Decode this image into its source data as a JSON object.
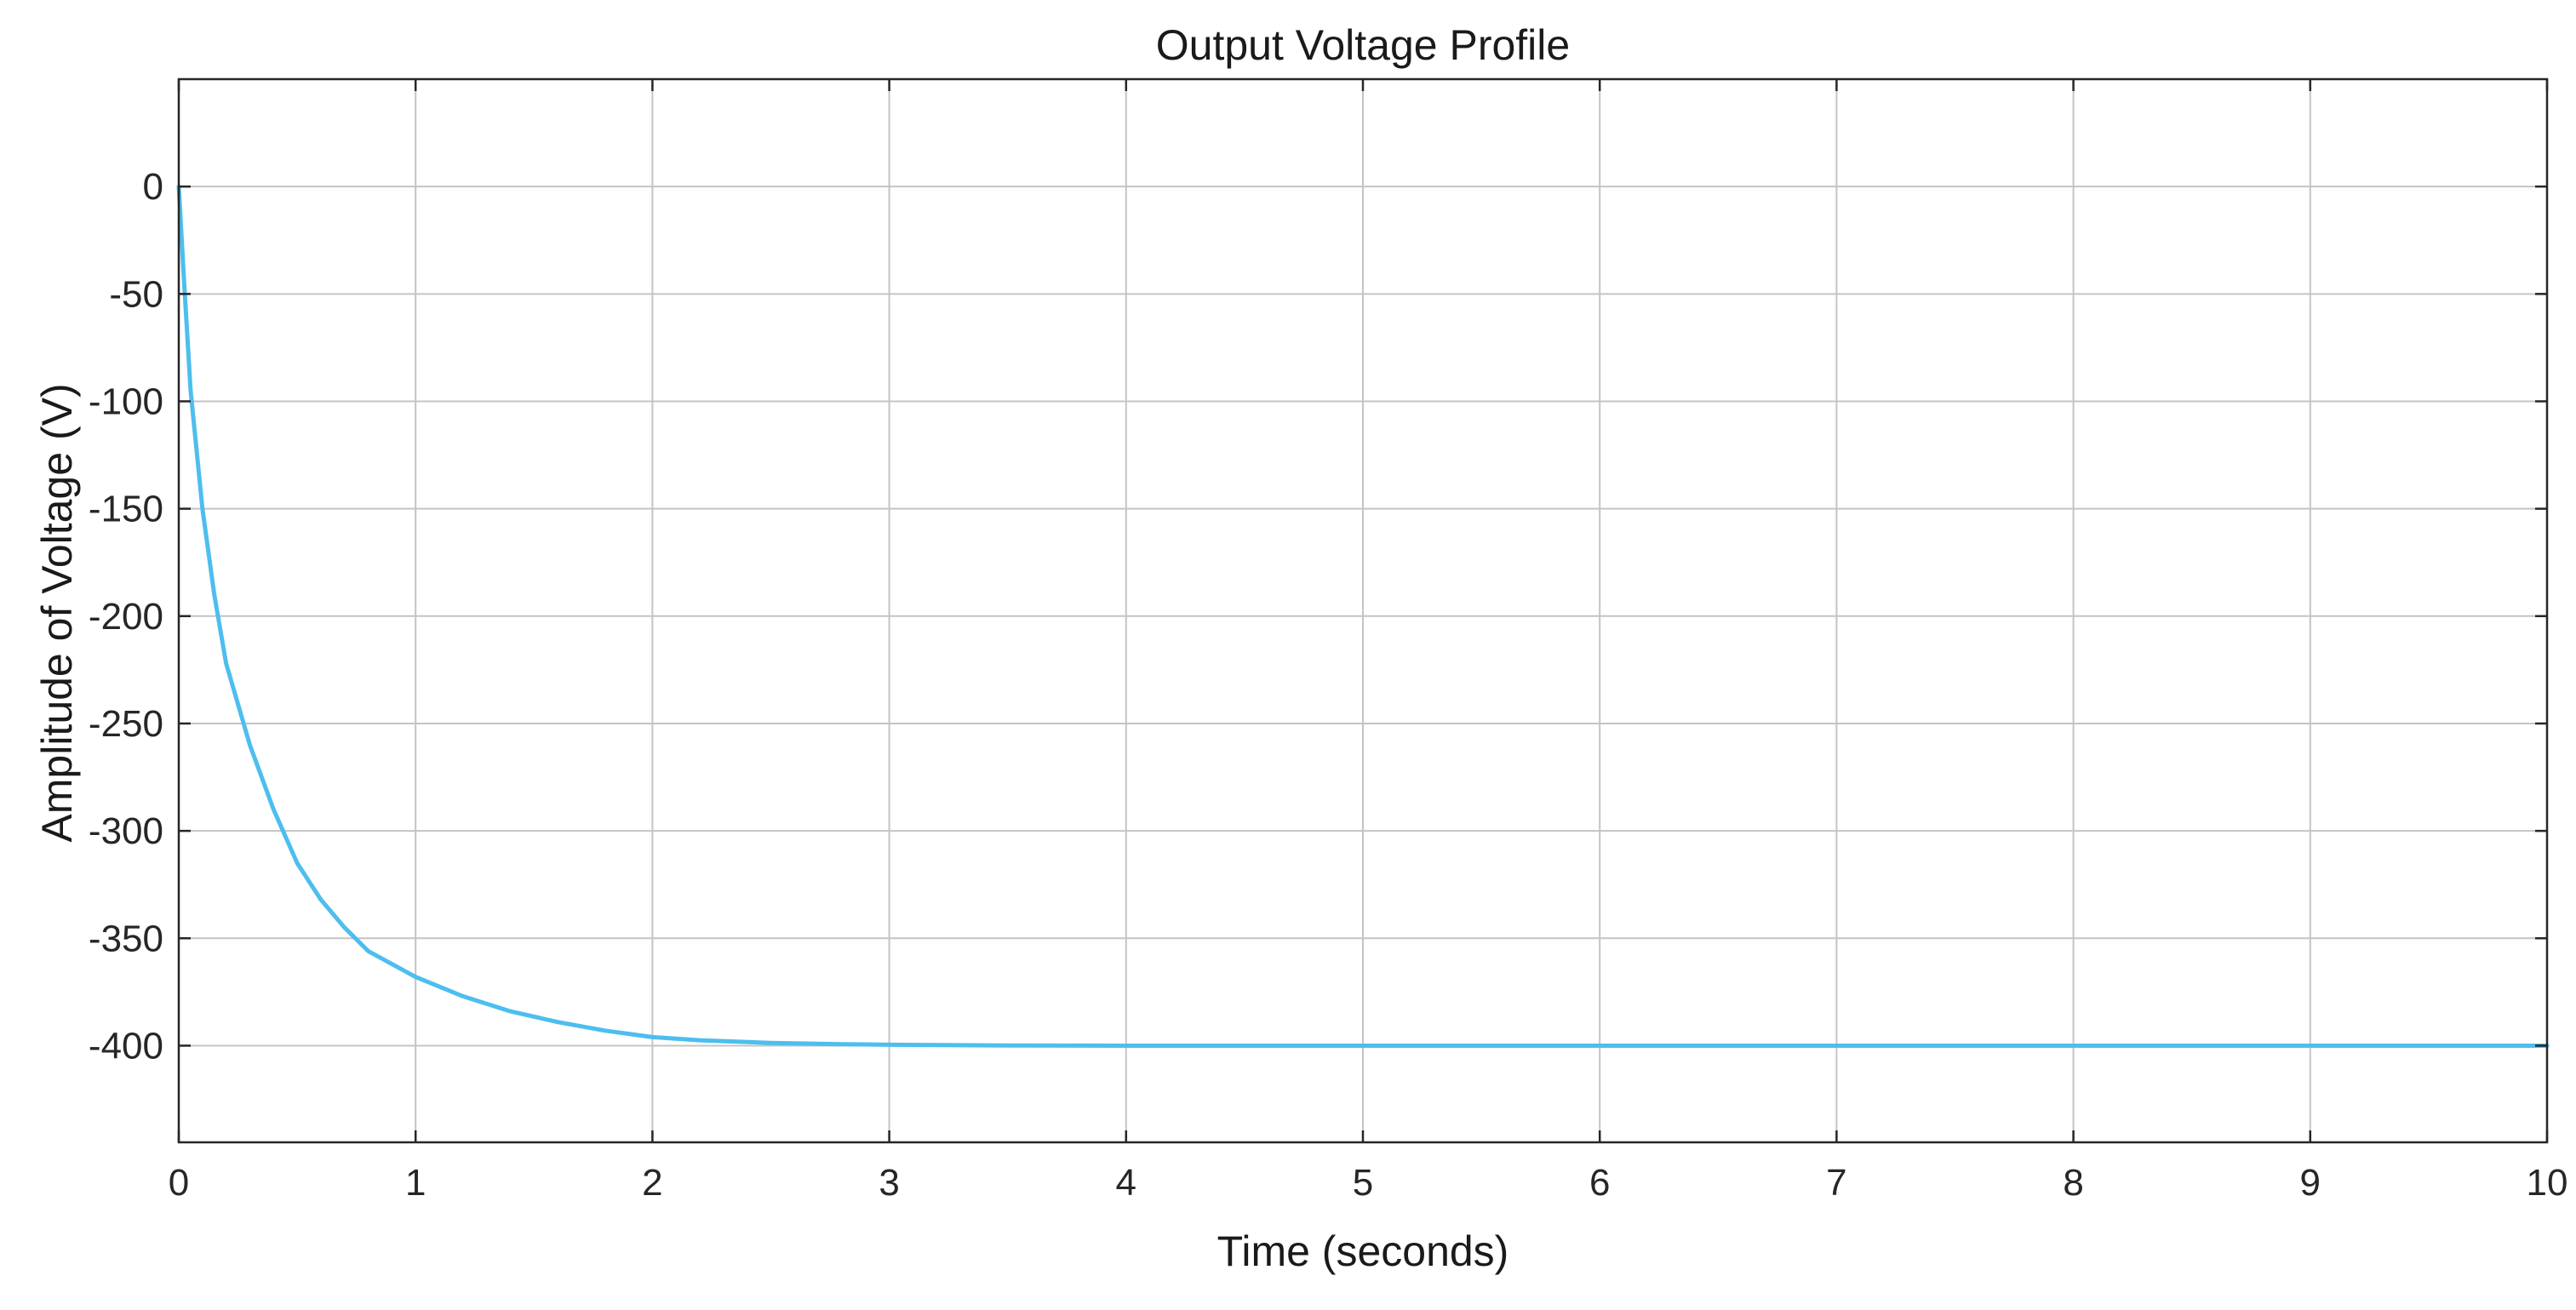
{
  "chart_data": {
    "type": "line",
    "title": "Output Voltage Profile",
    "xlabel": "Time (seconds)",
    "ylabel": "Amplitude of Voltage (V)",
    "xlim": [
      0,
      10
    ],
    "ylim": [
      -445,
      50
    ],
    "xticks": [
      0,
      1,
      2,
      3,
      4,
      5,
      6,
      7,
      8,
      9,
      10
    ],
    "yticks": [
      0,
      -50,
      -100,
      -150,
      -200,
      -250,
      -300,
      -350,
      -400
    ],
    "grid": true,
    "legend": "none",
    "series": [
      {
        "color": "#4dbeee",
        "x": [
          0,
          0.02,
          0.05,
          0.1,
          0.15,
          0.2,
          0.3,
          0.4,
          0.5,
          0.6,
          0.7,
          0.8,
          1.0,
          1.2,
          1.4,
          1.6,
          1.8,
          2.0,
          2.2,
          2.5,
          2.8,
          3.0,
          3.5,
          4.0,
          5.0,
          6.0,
          7.0,
          8.0,
          9.0,
          10.0
        ],
        "y": [
          0,
          -40,
          -95,
          -150,
          -190,
          -222,
          -260,
          -290,
          -315,
          -332,
          -345,
          -356,
          -368,
          -377,
          -384,
          -389,
          -393,
          -396,
          -397.5,
          -398.7,
          -399.3,
          -399.6,
          -399.9,
          -400,
          -400,
          -400,
          -400,
          -400,
          -400,
          -400
        ]
      }
    ]
  }
}
